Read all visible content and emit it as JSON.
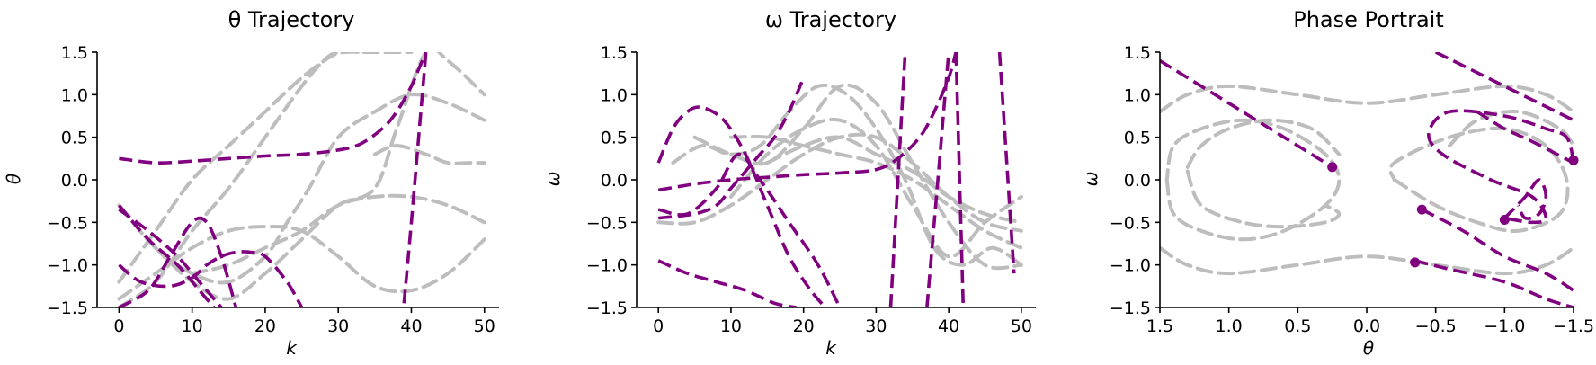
{
  "colors": {
    "highlight": "#800080",
    "background_traj": "#bdbdbd"
  },
  "chart_data": [
    {
      "type": "line",
      "title": "θ Trajectory",
      "xlabel": "k",
      "ylabel": "θ",
      "xlim": [
        -3,
        52
      ],
      "ylim": [
        1.5,
        -1.5
      ],
      "x_ticks": [
        "0",
        "10",
        "20",
        "30",
        "40",
        "50"
      ],
      "y_ticks": [
        "−1.5",
        "−1.0",
        "−0.5",
        "0.0",
        "0.5",
        "1.0",
        "1.5"
      ],
      "grid": false,
      "background_series": [
        {
          "x": [
            0,
            5,
            10,
            15,
            20,
            25,
            28,
            30,
            33
          ],
          "y": [
            -1.5,
            -1.2,
            -0.6,
            -0.1,
            0.5,
            1.1,
            1.4,
            1.5,
            1.5
          ]
        },
        {
          "x": [
            0,
            5,
            10,
            15,
            20,
            25,
            29,
            31,
            35,
            40
          ],
          "y": [
            -1.2,
            -0.6,
            0.0,
            0.4,
            0.8,
            1.2,
            1.45,
            1.5,
            1.5,
            1.5
          ]
        },
        {
          "x": [
            0,
            5,
            10,
            15,
            20,
            23,
            26,
            30,
            35,
            40,
            45,
            50
          ],
          "y": [
            -0.3,
            -0.8,
            -1.1,
            -1.2,
            -0.9,
            -0.5,
            -0.1,
            0.5,
            0.8,
            1.0,
            0.9,
            0.7
          ]
        },
        {
          "x": [
            5,
            10,
            15,
            20,
            25,
            30,
            35,
            38,
            42,
            45,
            50
          ],
          "y": [
            -0.8,
            -1.2,
            -1.4,
            -1.1,
            -0.7,
            -0.3,
            -0.1,
            0.6,
            1.5,
            1.4,
            1.0
          ]
        },
        {
          "x": [
            0,
            5,
            10,
            15,
            20,
            25,
            30,
            35,
            40,
            45,
            50
          ],
          "y": [
            -1.4,
            -1.1,
            -0.8,
            -0.6,
            -0.55,
            -0.6,
            -0.9,
            -1.25,
            -1.3,
            -1.1,
            -0.7
          ]
        },
        {
          "x": [
            10,
            15,
            20,
            25,
            30,
            35,
            40,
            45,
            50
          ],
          "y": [
            -1.1,
            -1.0,
            -0.8,
            -0.6,
            -0.3,
            -0.2,
            -0.2,
            -0.3,
            -0.5
          ]
        },
        {
          "x": [
            35,
            38,
            42,
            45,
            48,
            50
          ],
          "y": [
            0.3,
            0.4,
            0.3,
            0.2,
            0.2,
            0.2
          ]
        }
      ],
      "highlight_series": [
        {
          "x": [
            0,
            5,
            10,
            15,
            20,
            25,
            30,
            33,
            36,
            38,
            40,
            41,
            42
          ],
          "y": [
            0.25,
            0.2,
            0.22,
            0.25,
            0.28,
            0.3,
            0.35,
            0.42,
            0.6,
            0.8,
            1.1,
            1.3,
            1.5
          ]
        },
        {
          "x": [
            0,
            3,
            7,
            10,
            12,
            14,
            16,
            18,
            20,
            23,
            25
          ],
          "y": [
            -1.0,
            -1.2,
            -1.25,
            -1.15,
            -1.0,
            -0.9,
            -0.85,
            -0.85,
            -0.9,
            -1.2,
            -1.5
          ]
        },
        {
          "x": [
            0,
            4,
            7,
            10,
            12,
            14,
            16
          ],
          "y": [
            -1.5,
            -1.3,
            -0.9,
            -0.5,
            -0.5,
            -0.9,
            -1.5
          ]
        },
        {
          "x": [
            0,
            4,
            8,
            11,
            14
          ],
          "y": [
            -0.35,
            -0.6,
            -0.9,
            -1.2,
            -1.5
          ]
        },
        {
          "x": [
            0,
            4,
            8,
            11,
            13
          ],
          "y": [
            -0.3,
            -0.7,
            -1.0,
            -1.3,
            -1.5
          ]
        },
        {
          "x": [
            39,
            40,
            41,
            42
          ],
          "y": [
            -1.45,
            -0.5,
            0.5,
            1.5
          ]
        }
      ]
    },
    {
      "type": "line",
      "title": "ω Trajectory",
      "xlabel": "k",
      "ylabel": "ω",
      "xlim": [
        -3,
        52
      ],
      "ylim": [
        1.5,
        -1.5
      ],
      "x_ticks": [
        "0",
        "10",
        "20",
        "30",
        "40",
        "50"
      ],
      "y_ticks": [
        "−1.5",
        "−1.0",
        "−0.5",
        "0.0",
        "0.5",
        "1.0",
        "1.5"
      ],
      "grid": false,
      "background_series": [
        {
          "x": [
            0,
            5,
            10,
            15,
            20,
            25,
            30,
            35,
            40,
            45,
            50
          ],
          "y": [
            -0.5,
            -0.5,
            -0.3,
            0.0,
            0.3,
            0.5,
            0.5,
            0.2,
            -0.2,
            -0.5,
            -0.6
          ]
        },
        {
          "x": [
            2,
            6,
            10,
            14,
            18,
            22,
            26,
            30,
            34,
            38,
            42,
            46,
            50
          ],
          "y": [
            0.2,
            0.4,
            0.3,
            0.4,
            0.8,
            1.1,
            1.0,
            0.6,
            0.0,
            -0.8,
            -1.0,
            -0.8,
            -1.0
          ]
        },
        {
          "x": [
            5,
            10,
            15,
            20,
            25,
            30,
            35,
            40,
            45,
            50
          ],
          "y": [
            0.5,
            0.3,
            0.2,
            0.6,
            1.1,
            0.9,
            0.2,
            -0.5,
            -1.0,
            -1.0
          ]
        },
        {
          "x": [
            10,
            15,
            20,
            25,
            30,
            35,
            40,
            45,
            50
          ],
          "y": [
            -0.2,
            0.3,
            0.6,
            0.7,
            0.4,
            -0.3,
            -0.9,
            -0.5,
            -0.2
          ]
        },
        {
          "x": [
            10,
            15,
            20,
            25,
            30,
            35,
            40,
            45,
            50
          ],
          "y": [
            0.5,
            0.5,
            0.4,
            0.3,
            0.2,
            0.0,
            -0.3,
            -0.6,
            -0.8
          ]
        },
        {
          "x": [
            15,
            20,
            25,
            30,
            35,
            40,
            45,
            50
          ],
          "y": [
            0.2,
            0.4,
            0.5,
            0.3,
            0.1,
            -0.2,
            -0.4,
            -0.5
          ]
        }
      ],
      "highlight_series": [
        {
          "x": [
            0,
            5,
            10,
            15,
            20,
            25,
            30,
            33,
            36,
            38,
            40,
            41
          ],
          "y": [
            -0.12,
            -0.05,
            0.0,
            0.03,
            0.06,
            0.08,
            0.12,
            0.25,
            0.5,
            0.8,
            1.2,
            1.5
          ]
        },
        {
          "x": [
            0,
            5,
            8,
            10,
            12,
            14,
            16,
            18,
            20
          ],
          "y": [
            -0.45,
            -0.4,
            -0.3,
            -0.1,
            0.1,
            0.3,
            0.5,
            0.8,
            1.2
          ]
        },
        {
          "x": [
            0,
            4,
            8,
            11,
            14,
            18,
            22,
            25
          ],
          "y": [
            -0.35,
            -0.4,
            -0.1,
            0.3,
            0.0,
            -0.5,
            -1.0,
            -1.5
          ]
        },
        {
          "x": [
            0,
            4,
            8,
            12,
            16,
            19
          ],
          "y": [
            -0.95,
            -1.1,
            -1.2,
            -1.3,
            -1.45,
            -1.5
          ]
        },
        {
          "x": [
            0,
            2,
            4,
            6,
            9,
            12,
            15,
            18,
            21,
            23
          ],
          "y": [
            0.2,
            0.6,
            0.8,
            0.85,
            0.7,
            0.3,
            -0.3,
            -0.9,
            -1.3,
            -1.5
          ]
        },
        {
          "x": [
            32,
            33,
            34
          ],
          "y": [
            -1.5,
            0.0,
            1.5
          ]
        },
        {
          "x": [
            37,
            38,
            39,
            40
          ],
          "y": [
            -1.5,
            -0.5,
            0.5,
            1.5
          ]
        },
        {
          "x": [
            41,
            41.5,
            42
          ],
          "y": [
            1.5,
            0.0,
            -1.5
          ]
        },
        {
          "x": [
            47,
            48,
            49
          ],
          "y": [
            1.5,
            0.2,
            -1.1
          ]
        }
      ]
    },
    {
      "type": "line",
      "title": "Phase Portrait",
      "xlabel": "θ",
      "ylabel": "ω",
      "xlim": [
        1.5,
        -1.5
      ],
      "ylim": [
        1.5,
        -1.5
      ],
      "x_ticks": [
        "1.5",
        "1.0",
        "0.5",
        "0.0",
        "−0.5",
        "−1.0",
        "−1.5"
      ],
      "y_ticks": [
        "−1.5",
        "−1.0",
        "−0.5",
        "0.0",
        "0.5",
        "1.0",
        "1.5"
      ],
      "grid": false,
      "background_series": [
        {
          "x": [
            1.5,
            1.3,
            1.0,
            0.5,
            0.0,
            -0.5,
            -1.0,
            -1.3,
            -1.5
          ],
          "y": [
            -0.8,
            -1.0,
            -1.1,
            -1.0,
            -0.9,
            -1.0,
            -1.1,
            -1.0,
            -0.8
          ]
        },
        {
          "x": [
            1.5,
            1.3,
            1.0,
            0.5,
            0.0,
            -0.5,
            -1.0,
            -1.3,
            -1.5
          ],
          "y": [
            0.8,
            1.0,
            1.1,
            1.0,
            0.9,
            1.0,
            1.1,
            1.0,
            0.8
          ]
        },
        {
          "x": [
            -0.2,
            -0.5,
            -0.8,
            -1.1,
            -1.4,
            -1.45,
            -1.3,
            -1.0,
            -0.6,
            -0.2,
            -0.2
          ],
          "y": [
            0.0,
            -0.3,
            -0.5,
            -0.6,
            -0.4,
            0.0,
            0.4,
            0.6,
            0.5,
            0.2,
            0.0
          ]
        },
        {
          "x": [
            1.45,
            1.4,
            1.2,
            0.9,
            0.6,
            0.3,
            0.2,
            0.3,
            0.6,
            0.9,
            1.2,
            1.4,
            1.45
          ],
          "y": [
            0.0,
            -0.4,
            -0.6,
            -0.7,
            -0.6,
            -0.3,
            0.0,
            0.3,
            0.6,
            0.7,
            0.6,
            0.4,
            0.0
          ]
        },
        {
          "x": [
            1.3,
            1.2,
            0.9,
            0.6,
            0.3,
            0.2,
            0.3
          ],
          "y": [
            0.1,
            -0.3,
            -0.5,
            -0.55,
            -0.5,
            -0.4,
            -0.3
          ]
        },
        {
          "x": [
            1.3,
            1.2,
            1.0,
            0.7,
            0.4,
            0.2
          ],
          "y": [
            0.15,
            0.4,
            0.6,
            0.7,
            0.6,
            0.3
          ]
        },
        {
          "x": [
            -0.6,
            -0.8,
            -1.1,
            -1.4,
            -1.5
          ],
          "y": [
            0.4,
            0.7,
            0.8,
            0.6,
            0.4
          ]
        }
      ],
      "highlight_series": [
        {
          "x": [
            1.5,
            1.0,
            0.5,
            0.25
          ],
          "y": [
            1.4,
            0.9,
            0.4,
            0.15
          ]
        },
        {
          "x": [
            -0.35,
            -0.6,
            -1.0,
            -1.3,
            -1.5
          ],
          "y": [
            -0.95,
            -1.05,
            -1.2,
            -1.4,
            -1.5
          ]
        },
        {
          "x": [
            -0.4,
            -0.7,
            -1.0,
            -1.3,
            -1.5
          ],
          "y": [
            -0.35,
            -0.6,
            -0.9,
            -1.1,
            -1.3
          ]
        },
        {
          "x": [
            -0.8,
            -1.0,
            -1.2,
            -1.5
          ],
          "y": [
            0.8,
            0.6,
            0.45,
            0.2
          ]
        },
        {
          "x": [
            -1.5,
            -1.45,
            -1.3,
            -1.0,
            -0.6,
            -0.45,
            -0.55,
            -0.9,
            -1.2,
            -1.3,
            -1.2,
            -1.0
          ],
          "y": [
            0.22,
            0.5,
            0.6,
            0.75,
            0.8,
            0.55,
            0.3,
            0.0,
            -0.2,
            -0.45,
            -0.5,
            -0.45
          ]
        },
        {
          "x": [
            -1.0,
            -1.15,
            -1.25,
            -1.3,
            -1.25,
            -1.15,
            -1.1
          ],
          "y": [
            -0.45,
            -0.2,
            0.0,
            -0.2,
            -0.4,
            -0.45,
            -0.3
          ]
        },
        {
          "x": [
            -0.5,
            -1.0,
            -1.5
          ],
          "y": [
            1.5,
            1.1,
            0.7
          ]
        }
      ],
      "points": [
        {
          "x": 0.25,
          "y": 0.15
        },
        {
          "x": -0.35,
          "y": -0.97
        },
        {
          "x": -0.4,
          "y": -0.35
        },
        {
          "x": -1.0,
          "y": -0.47
        },
        {
          "x": -1.5,
          "y": 0.23
        }
      ]
    }
  ]
}
